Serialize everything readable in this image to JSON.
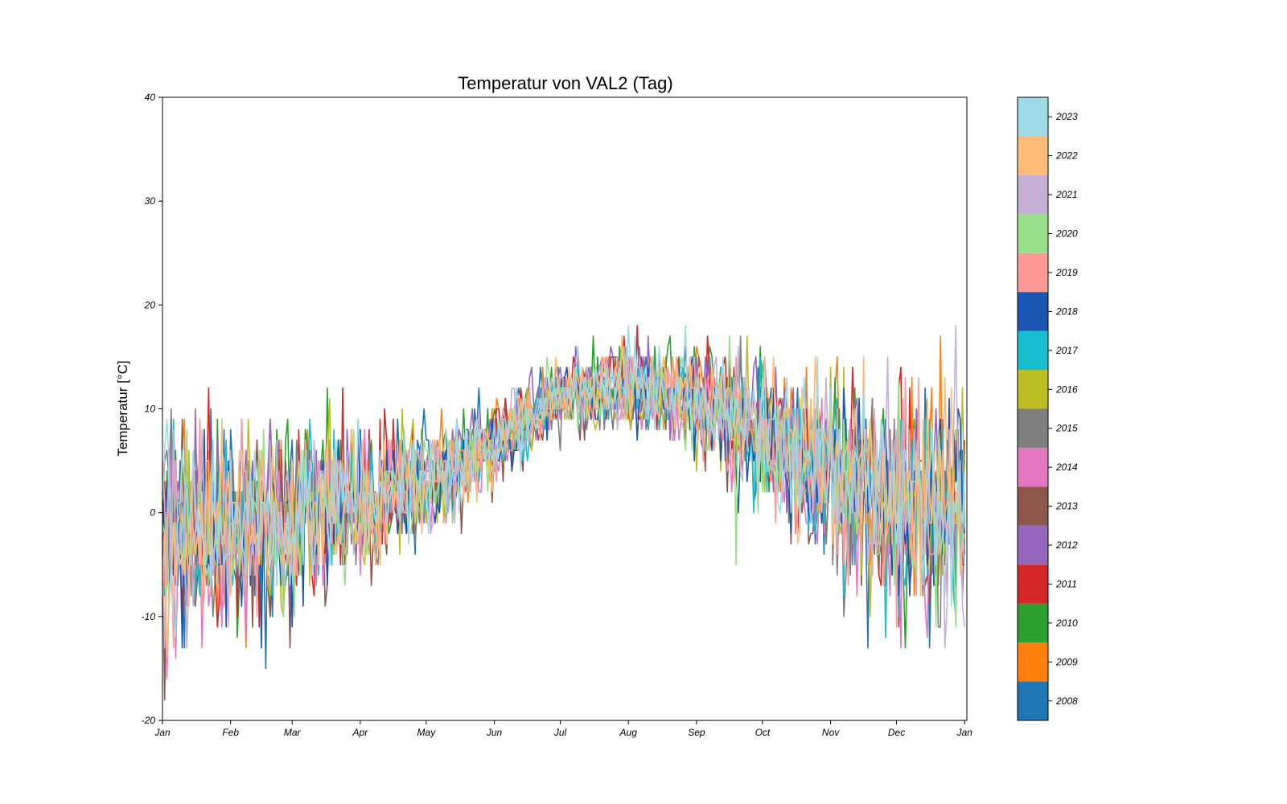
{
  "chart_data": {
    "type": "line",
    "title": "Temperatur von VAL2 (Tag)",
    "xlabel": "",
    "ylabel": "Temperatur [°C]",
    "x_domain": [
      "Jan",
      "Jan"
    ],
    "ylim": [
      -20,
      40
    ],
    "yticks": [
      -20,
      -10,
      0,
      10,
      20,
      30,
      40
    ],
    "xtick_labels": [
      "Jan",
      "Feb",
      "Mar",
      "Apr",
      "May",
      "Jun",
      "Jul",
      "Aug",
      "Sep",
      "Oct",
      "Nov",
      "Dec",
      "Jan"
    ],
    "xtick_days": [
      0,
      31,
      59,
      90,
      120,
      151,
      181,
      212,
      243,
      273,
      304,
      334,
      365
    ],
    "grid": false,
    "legend": "colorbar-right",
    "colorbar_labels": [
      "2008",
      "2009",
      "2010",
      "2011",
      "2012",
      "2013",
      "2014",
      "2015",
      "2016",
      "2017",
      "2018",
      "2019",
      "2020",
      "2021",
      "2022",
      "2023"
    ],
    "seasonal_profile_days": [
      0,
      30,
      60,
      90,
      120,
      150,
      180,
      210,
      240,
      270,
      300,
      330,
      365
    ],
    "seasonal_profile_mean": [
      -2,
      -2,
      -1,
      1,
      3,
      6,
      11,
      12,
      11,
      8,
      4,
      1,
      -1
    ],
    "series": [
      {
        "name": "2008",
        "color": "#1f77b4"
      },
      {
        "name": "2009",
        "color": "#ff7f0e"
      },
      {
        "name": "2010",
        "color": "#2ca02c"
      },
      {
        "name": "2011",
        "color": "#d62728"
      },
      {
        "name": "2012",
        "color": "#9467bd"
      },
      {
        "name": "2013",
        "color": "#8c564b"
      },
      {
        "name": "2014",
        "color": "#e377c2"
      },
      {
        "name": "2015",
        "color": "#7f7f7f"
      },
      {
        "name": "2016",
        "color": "#bcbd22"
      },
      {
        "name": "2017",
        "color": "#17becf"
      },
      {
        "name": "2018",
        "color": "#1a55b3"
      },
      {
        "name": "2019",
        "color": "#ff9896"
      },
      {
        "name": "2020",
        "color": "#98df8a"
      },
      {
        "name": "2021",
        "color": "#c5b0d5"
      },
      {
        "name": "2022",
        "color": "#ffbb78"
      },
      {
        "name": "2023",
        "color": "#9edae5"
      }
    ]
  }
}
